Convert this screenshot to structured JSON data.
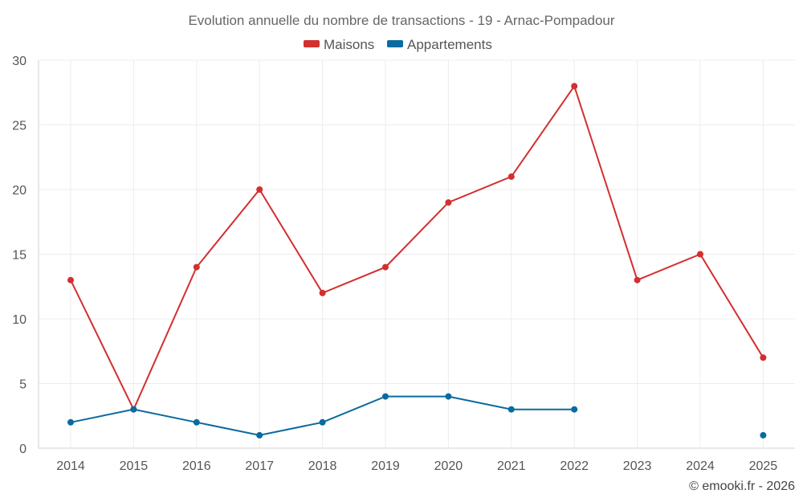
{
  "chart_data": {
    "type": "line",
    "title": "Evolution annuelle du nombre de transactions - 19 - Arnac-Pompadour",
    "categories": [
      "2014",
      "2015",
      "2016",
      "2017",
      "2018",
      "2019",
      "2020",
      "2021",
      "2022",
      "2023",
      "2024",
      "2025"
    ],
    "ylim": [
      0,
      30
    ],
    "yticks": [
      0,
      5,
      10,
      15,
      20,
      25,
      30
    ],
    "grid": true,
    "legend_position": "top-center",
    "series": [
      {
        "name": "Maisons",
        "color": "#d32f2f",
        "values": [
          13,
          3,
          14,
          20,
          12,
          14,
          19,
          21,
          28,
          13,
          15,
          7
        ]
      },
      {
        "name": "Appartements",
        "color": "#0b6a9f",
        "values": [
          2,
          3,
          2,
          1,
          2,
          4,
          4,
          3,
          3,
          null,
          null,
          1
        ]
      }
    ]
  },
  "credit": "© emooki.fr - 2026"
}
